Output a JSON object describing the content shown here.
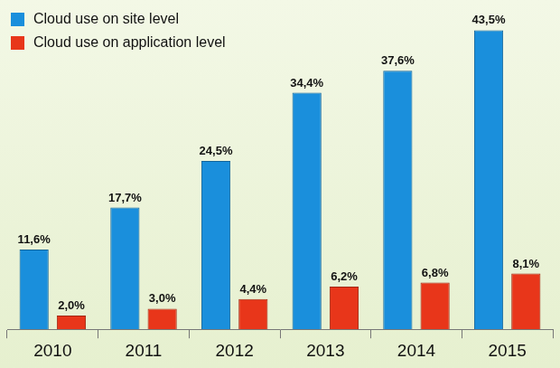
{
  "chart_data": {
    "type": "bar",
    "categories": [
      "2010",
      "2011",
      "2012",
      "2013",
      "2014",
      "2015"
    ],
    "series": [
      {
        "name": "Cloud use on site level",
        "color": "#1a8fdc",
        "values": [
          11.6,
          17.7,
          24.5,
          34.4,
          37.6,
          43.5
        ],
        "value_labels": [
          "11,6%",
          "17,7%",
          "24,5%",
          "34,4%",
          "37,6%",
          "43,5%"
        ]
      },
      {
        "name": "Cloud use on application level",
        "color": "#e8361a",
        "values": [
          2.0,
          3.0,
          4.4,
          6.2,
          6.8,
          8.1
        ],
        "value_labels": [
          "2,0%",
          "3,0%",
          "4,4%",
          "6,2%",
          "6,8%",
          "8,1%"
        ]
      }
    ],
    "legend": "top-left",
    "data_labels": true,
    "tick_labels": "x"
  }
}
